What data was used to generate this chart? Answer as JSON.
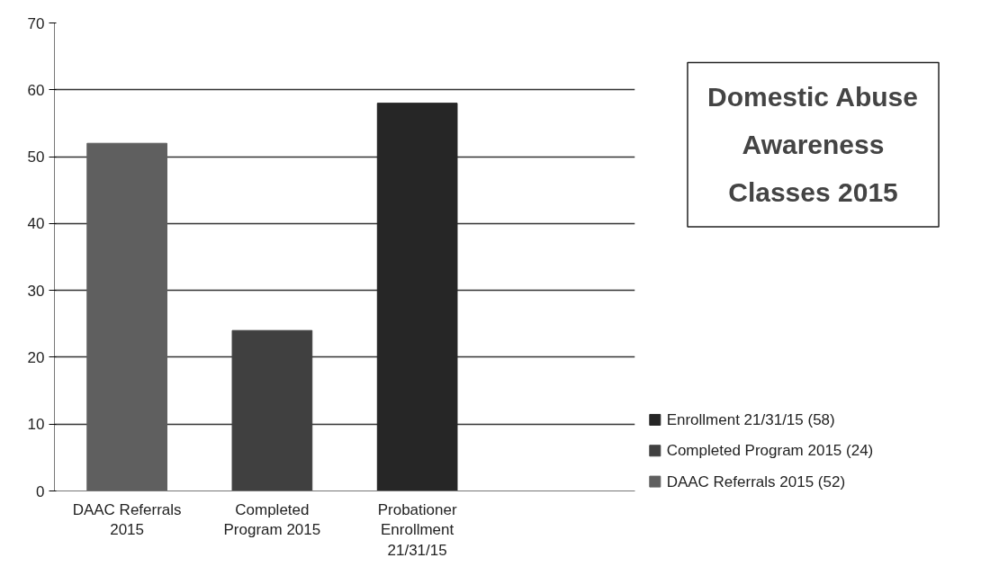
{
  "chart_data": {
    "type": "bar",
    "title": "Domestic Abuse Awareness Classes 2015",
    "categories": [
      "DAAC Referrals 2015",
      "Completed Program 2015",
      "Probationer Enrollment 21/31/15",
      null
    ],
    "series": [
      {
        "name": "DAAC Referrals 2015 (52)",
        "color": "#5f5f5f",
        "values": [
          52,
          null,
          null,
          null
        ]
      },
      {
        "name": "Completed Program 2015 (24)",
        "color": "#404040",
        "values": [
          null,
          24,
          null,
          null
        ]
      },
      {
        "name": "Enrollment 21/31/15 (58)",
        "color": "#262626",
        "values": [
          null,
          null,
          58,
          null
        ]
      }
    ],
    "ylim": [
      0,
      70
    ],
    "yticks": [
      0,
      10,
      20,
      30,
      40,
      50,
      60,
      70
    ],
    "grid": "y",
    "legend": "right"
  }
}
